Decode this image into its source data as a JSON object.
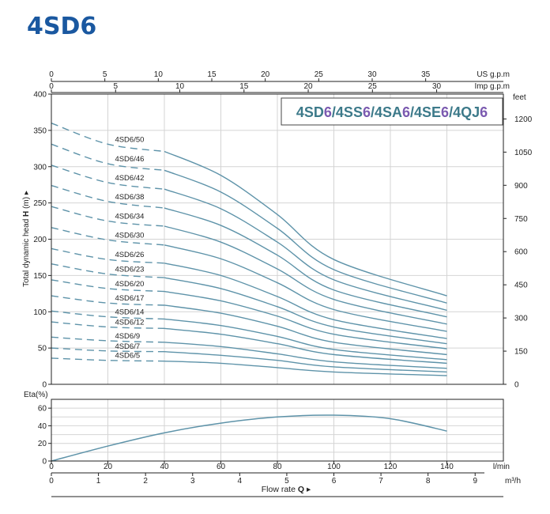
{
  "page": {
    "title": "4SD6"
  },
  "chart_data": [
    {
      "type": "line",
      "title": "4SD6/4SS6/4SA6/4SE6/4QJ6",
      "title_parts": [
        {
          "text": "4SD",
          "color": "#3d7a8a"
        },
        {
          "text": "6",
          "color": "#7b5ab0"
        },
        {
          "text": "/4SS",
          "color": "#3d7a8a"
        },
        {
          "text": "6",
          "color": "#7b5ab0"
        },
        {
          "text": "/4SA",
          "color": "#3d7a8a"
        },
        {
          "text": "6",
          "color": "#7b5ab0"
        },
        {
          "text": "/4SE",
          "color": "#3d7a8a"
        },
        {
          "text": "6",
          "color": "#7b5ab0"
        },
        {
          "text": "/4QJ",
          "color": "#3d7a8a"
        },
        {
          "text": "6",
          "color": "#7b5ab0"
        }
      ],
      "ylabel": "Total dynamic head",
      "ylabel_symbol": "H",
      "ylabel_unit": "(m)",
      "ylabel_arrow": "▸",
      "ylim": [
        0,
        400
      ],
      "yticks": [
        0,
        50,
        100,
        150,
        200,
        250,
        300,
        350,
        400
      ],
      "y2label": "feet",
      "y2ticks": [
        0,
        150,
        300,
        450,
        600,
        750,
        900,
        1050,
        1200
      ],
      "xlim": [
        0,
        160
      ],
      "x_top1_label": "US g.p.m",
      "x_top1_ticks": [
        0,
        5,
        10,
        15,
        20,
        25,
        30,
        35
      ],
      "x_top2_label": "Imp g.p.m",
      "x_top2_ticks": [
        0,
        5,
        10,
        15,
        20,
        25,
        30
      ],
      "grid": true,
      "line_color": "#5e93a9",
      "dashed_until_x": 40,
      "curve_x_max": 140,
      "series": [
        {
          "name": "4SD6/50",
          "values": [
            360,
            331,
            321,
            288,
            234,
            172,
            122
          ]
        },
        {
          "name": "4SD6/46",
          "values": [
            331,
            304,
            295,
            265,
            215,
            158,
            112
          ]
        },
        {
          "name": "4SD6/42",
          "values": [
            302,
            278,
            269,
            242,
            196,
            144,
            102
          ]
        },
        {
          "name": "4SD6/38",
          "values": [
            274,
            252,
            243,
            219,
            178,
            130,
            93
          ]
        },
        {
          "name": "4SD6/34",
          "values": [
            245,
            225,
            218,
            196,
            159,
            117,
            83
          ]
        },
        {
          "name": "4SD6/30",
          "values": [
            216,
            199,
            192,
            173,
            140,
            103,
            73
          ]
        },
        {
          "name": "4SD6/26",
          "values": [
            187,
            172,
            167,
            150,
            121,
            89,
            63
          ]
        },
        {
          "name": "4SD6/23",
          "values": [
            166,
            152,
            147,
            132,
            107,
            79,
            56
          ]
        },
        {
          "name": "4SD6/20",
          "values": [
            144,
            132,
            128,
            115,
            94,
            69,
            49
          ]
        },
        {
          "name": "4SD6/17",
          "values": [
            122,
            112,
            109,
            98,
            80,
            58,
            41
          ]
        },
        {
          "name": "4SD6/14",
          "values": [
            101,
            93,
            90,
            81,
            66,
            48,
            34
          ]
        },
        {
          "name": "4SD6/12",
          "values": [
            86,
            79,
            77,
            69,
            56,
            41,
            29
          ]
        },
        {
          "name": "4SD6/9",
          "values": [
            65,
            60,
            58,
            52,
            42,
            31,
            22
          ]
        },
        {
          "name": "4SD6/7",
          "values": [
            50,
            46,
            45,
            40,
            33,
            24,
            17
          ]
        },
        {
          "name": "4SD6/5",
          "values": [
            36,
            33,
            32,
            29,
            23,
            17,
            12
          ]
        }
      ],
      "x": [
        0,
        20,
        40,
        60,
        80,
        100,
        140
      ]
    },
    {
      "type": "line",
      "ylabel": "Eta(%)",
      "ylim": [
        0,
        70
      ],
      "yticks": [
        0,
        20,
        40,
        60
      ],
      "xlim": [
        0,
        160
      ],
      "xticks": [
        0,
        20,
        40,
        60,
        80,
        100,
        120,
        140
      ],
      "xlabel_unit": "l/min",
      "x2ticks": [
        0,
        1,
        2,
        3,
        4,
        5,
        6,
        7,
        8,
        9
      ],
      "x2label_unit": "m³/h",
      "xlabel": "Flow rate",
      "xlabel_symbol": "Q",
      "xlabel_arrow": "▸",
      "grid": true,
      "line_color": "#5e93a9",
      "series": [
        {
          "x": [
            0,
            20,
            40,
            60,
            80,
            100,
            120,
            140
          ],
          "values": [
            0,
            17,
            32,
            43,
            50,
            52,
            48,
            34
          ]
        }
      ]
    }
  ]
}
